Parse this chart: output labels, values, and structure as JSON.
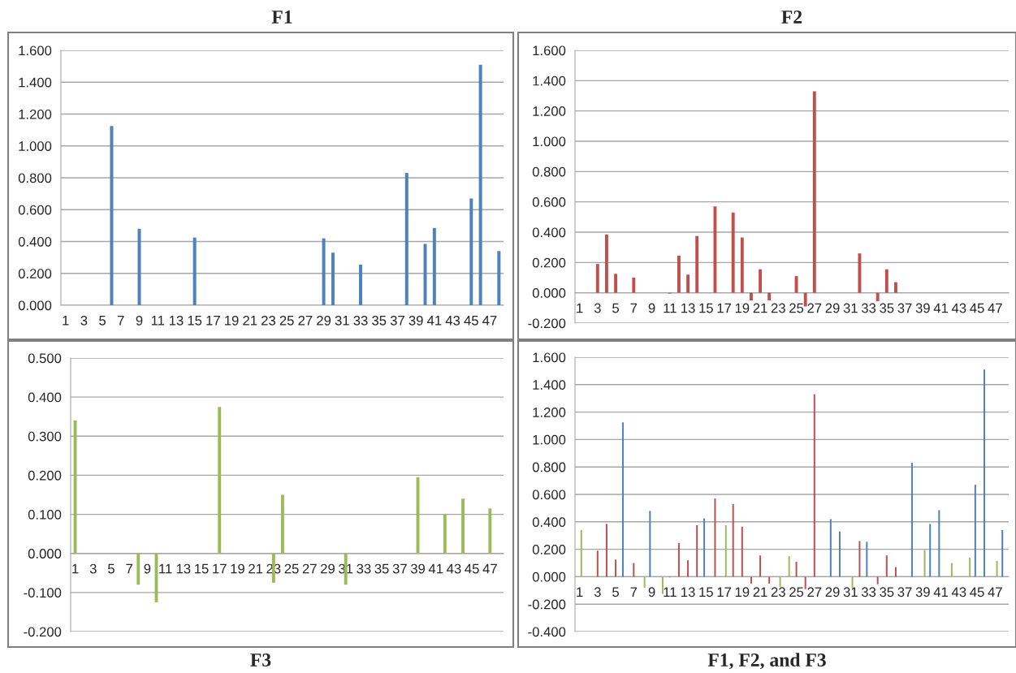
{
  "chart_data": [
    {
      "type": "bar",
      "title": "F1",
      "categories": [
        "1",
        null,
        "3",
        null,
        "5",
        null,
        "7",
        null,
        "9",
        null,
        "11",
        null,
        "13",
        null,
        "15",
        null,
        "17",
        null,
        "19",
        null,
        "21",
        null,
        "23",
        null,
        "25",
        null,
        "27",
        null,
        "29",
        null,
        "31",
        null,
        "33",
        null,
        "35",
        null,
        "37",
        null,
        "39",
        null,
        "41",
        null,
        "43",
        null,
        "45",
        null,
        "47",
        null
      ],
      "values": [
        null,
        null,
        null,
        null,
        null,
        1.125,
        null,
        null,
        0.48,
        null,
        null,
        null,
        null,
        null,
        0.425,
        null,
        null,
        null,
        null,
        null,
        null,
        null,
        null,
        null,
        null,
        null,
        null,
        null,
        0.42,
        0.33,
        null,
        null,
        0.255,
        null,
        null,
        null,
        null,
        0.83,
        null,
        0.385,
        0.485,
        null,
        null,
        null,
        0.67,
        1.51,
        null,
        0.34
      ],
      "color": "#4f81bd",
      "ylim": [
        0,
        1.6
      ],
      "yticks": [
        {
          "value": 0,
          "label": "0.000"
        },
        {
          "value": 0.2,
          "label": "0.200"
        },
        {
          "value": 0.4,
          "label": "0.400"
        },
        {
          "value": 0.6,
          "label": "0.600"
        },
        {
          "value": 0.8,
          "label": "0.800"
        },
        {
          "value": 1.0,
          "label": "1.000"
        },
        {
          "value": 1.2,
          "label": "1.200"
        },
        {
          "value": 1.4,
          "label": "1.400"
        },
        {
          "value": 1.6,
          "label": "1.600"
        }
      ],
      "grid": "y"
    },
    {
      "type": "bar",
      "title": "F2",
      "categories": [
        "1",
        null,
        "3",
        null,
        "5",
        null,
        "7",
        null,
        "9",
        null,
        "11",
        null,
        "13",
        null,
        "15",
        null,
        "17",
        null,
        "19",
        null,
        "21",
        null,
        "23",
        null,
        "25",
        null,
        "27",
        null,
        "29",
        null,
        "31",
        null,
        "33",
        null,
        "35",
        null,
        "37",
        null,
        "39",
        null,
        "41",
        null,
        "43",
        null,
        "45",
        null,
        "47",
        null
      ],
      "values": [
        null,
        null,
        0.19,
        0.385,
        0.125,
        null,
        0.1,
        null,
        null,
        null,
        -0.005,
        0.245,
        0.12,
        0.375,
        null,
        0.57,
        null,
        0.53,
        0.365,
        -0.05,
        0.155,
        -0.05,
        null,
        null,
        0.11,
        -0.09,
        1.33,
        null,
        null,
        null,
        null,
        0.26,
        null,
        -0.055,
        0.155,
        0.07,
        null,
        null,
        null,
        null,
        null,
        null,
        null,
        null,
        null,
        null,
        null,
        null
      ],
      "color": "#c0504d",
      "ylim": [
        -0.2,
        1.6
      ],
      "yticks": [
        {
          "value": -0.2,
          "label": "-0.200"
        },
        {
          "value": 0,
          "label": "0.000"
        },
        {
          "value": 0.2,
          "label": "0.200"
        },
        {
          "value": 0.4,
          "label": "0.400"
        },
        {
          "value": 0.6,
          "label": "0.600"
        },
        {
          "value": 0.8,
          "label": "0.800"
        },
        {
          "value": 1.0,
          "label": "1.000"
        },
        {
          "value": 1.2,
          "label": "1.200"
        },
        {
          "value": 1.4,
          "label": "1.400"
        },
        {
          "value": 1.6,
          "label": "1.600"
        }
      ],
      "grid": "y"
    },
    {
      "type": "bar",
      "title": "F3",
      "categories": [
        "1",
        null,
        "3",
        null,
        "5",
        null,
        "7",
        null,
        "9",
        null,
        "11",
        null,
        "13",
        null,
        "15",
        null,
        "17",
        null,
        "19",
        null,
        "21",
        null,
        "23",
        null,
        "25",
        null,
        "27",
        null,
        "29",
        null,
        "31",
        null,
        "33",
        null,
        "35",
        null,
        "37",
        null,
        "39",
        null,
        "41",
        null,
        "43",
        null,
        "45",
        null,
        "47",
        null
      ],
      "values": [
        0.34,
        null,
        null,
        null,
        null,
        null,
        null,
        -0.08,
        null,
        -0.125,
        null,
        null,
        null,
        null,
        null,
        null,
        0.375,
        null,
        null,
        null,
        null,
        null,
        -0.075,
        0.15,
        null,
        null,
        null,
        null,
        null,
        null,
        -0.08,
        null,
        null,
        null,
        null,
        null,
        null,
        null,
        0.195,
        null,
        null,
        0.1,
        null,
        0.14,
        null,
        null,
        0.115,
        null
      ],
      "color": "#9bbb59",
      "ylim": [
        -0.2,
        0.5
      ],
      "yticks": [
        {
          "value": -0.2,
          "label": "-0.200"
        },
        {
          "value": -0.1,
          "label": "-0.100"
        },
        {
          "value": 0,
          "label": "0.000"
        },
        {
          "value": 0.1,
          "label": "0.100"
        },
        {
          "value": 0.2,
          "label": "0.200"
        },
        {
          "value": 0.3,
          "label": "0.300"
        },
        {
          "value": 0.4,
          "label": "0.400"
        },
        {
          "value": 0.5,
          "label": "0.500"
        }
      ],
      "grid": "y"
    },
    {
      "type": "bar",
      "title": "F1, F2, and F3",
      "categories": [
        "1",
        null,
        "3",
        null,
        "5",
        null,
        "7",
        null,
        "9",
        null,
        "11",
        null,
        "13",
        null,
        "15",
        null,
        "17",
        null,
        "19",
        null,
        "21",
        null,
        "23",
        null,
        "25",
        null,
        "27",
        null,
        "29",
        null,
        "31",
        null,
        "33",
        null,
        "35",
        null,
        "37",
        null,
        "39",
        null,
        "41",
        null,
        "43",
        null,
        "45",
        null,
        "47",
        null
      ],
      "series": [
        {
          "color": "#4f81bd",
          "values": [
            null,
            null,
            null,
            null,
            null,
            1.125,
            null,
            null,
            0.48,
            null,
            null,
            null,
            null,
            null,
            0.425,
            null,
            null,
            null,
            null,
            null,
            null,
            null,
            null,
            null,
            null,
            null,
            null,
            null,
            0.42,
            0.33,
            null,
            null,
            0.255,
            null,
            null,
            null,
            null,
            0.83,
            null,
            0.385,
            0.485,
            null,
            null,
            null,
            0.67,
            1.51,
            null,
            0.34
          ]
        },
        {
          "color": "#c0504d",
          "values": [
            null,
            null,
            0.19,
            0.385,
            0.125,
            null,
            0.1,
            null,
            null,
            null,
            -0.005,
            0.245,
            0.12,
            0.375,
            null,
            0.57,
            null,
            0.53,
            0.365,
            -0.05,
            0.155,
            -0.05,
            null,
            null,
            0.11,
            -0.09,
            1.33,
            null,
            null,
            null,
            null,
            0.26,
            null,
            -0.055,
            0.155,
            0.07,
            null,
            null,
            null,
            null,
            null,
            null,
            null,
            null,
            null,
            null,
            null,
            null
          ]
        },
        {
          "color": "#9bbb59",
          "values": [
            0.34,
            null,
            null,
            null,
            null,
            null,
            null,
            -0.08,
            null,
            -0.125,
            null,
            null,
            null,
            null,
            null,
            null,
            0.375,
            null,
            null,
            null,
            null,
            null,
            -0.075,
            0.15,
            null,
            null,
            null,
            null,
            null,
            null,
            -0.08,
            null,
            null,
            null,
            null,
            null,
            null,
            null,
            0.195,
            null,
            null,
            0.1,
            null,
            0.14,
            null,
            null,
            0.115,
            null
          ]
        }
      ],
      "ylim": [
        -0.4,
        1.6
      ],
      "yticks": [
        {
          "value": -0.4,
          "label": "-0.400"
        },
        {
          "value": -0.2,
          "label": "-0.200"
        },
        {
          "value": 0,
          "label": "0.000"
        },
        {
          "value": 0.2,
          "label": "0.200"
        },
        {
          "value": 0.4,
          "label": "0.400"
        },
        {
          "value": 0.6,
          "label": "0.600"
        },
        {
          "value": 0.8,
          "label": "0.800"
        },
        {
          "value": 1.0,
          "label": "1.000"
        },
        {
          "value": 1.2,
          "label": "1.200"
        },
        {
          "value": 1.4,
          "label": "1.400"
        },
        {
          "value": 1.6,
          "label": "1.600"
        }
      ],
      "grid": "y"
    }
  ]
}
